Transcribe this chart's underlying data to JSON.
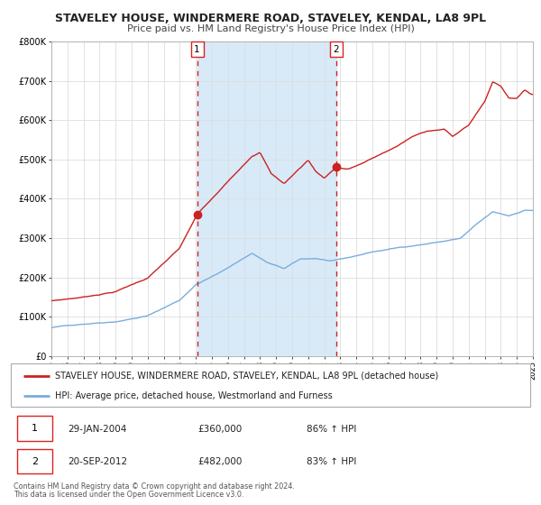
{
  "title": "STAVELEY HOUSE, WINDERMERE ROAD, STAVELEY, KENDAL, LA8 9PL",
  "subtitle": "Price paid vs. HM Land Registry's House Price Index (HPI)",
  "xlim": [
    1995,
    2025
  ],
  "ylim": [
    0,
    800000
  ],
  "yticks": [
    0,
    100000,
    200000,
    300000,
    400000,
    500000,
    600000,
    700000,
    800000
  ],
  "ytick_labels": [
    "£0",
    "£100K",
    "£200K",
    "£300K",
    "£400K",
    "£500K",
    "£600K",
    "£700K",
    "£800K"
  ],
  "hpi_color": "#7aaddc",
  "price_color": "#cc2222",
  "marker1_date": 2004.08,
  "marker1_price": 360000,
  "marker1_label": "29-JAN-2004",
  "marker1_amount": "£360,000",
  "marker1_pct": "86% ↑ HPI",
  "marker2_date": 2012.73,
  "marker2_price": 482000,
  "marker2_label": "20-SEP-2012",
  "marker2_amount": "£482,000",
  "marker2_pct": "83% ↑ HPI",
  "legend_line1": "STAVELEY HOUSE, WINDERMERE ROAD, STAVELEY, KENDAL, LA8 9PL (detached house)",
  "legend_line2": "HPI: Average price, detached house, Westmorland and Furness",
  "footer1": "Contains HM Land Registry data © Crown copyright and database right 2024.",
  "footer2": "This data is licensed under the Open Government Licence v3.0.",
  "shaded_region_color": "#d8eaf8",
  "grid_color": "#dddddd",
  "box_color": "#dd2222"
}
